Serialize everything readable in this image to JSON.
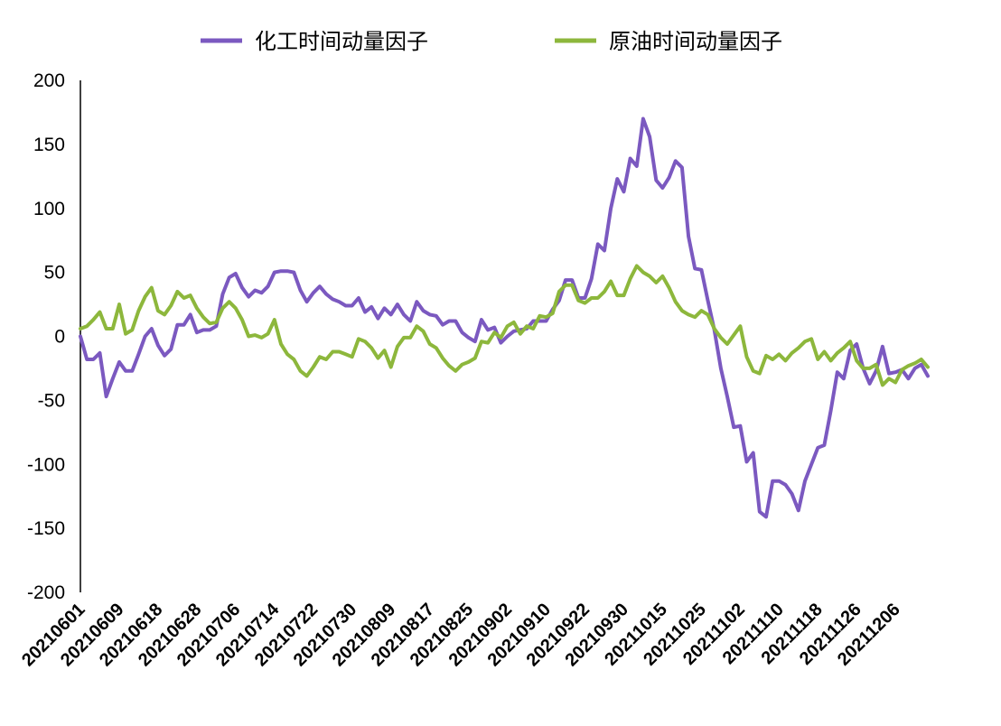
{
  "chart_data": {
    "type": "line",
    "title": "",
    "xlabel": "",
    "ylabel": "",
    "ylim": [
      -200,
      200
    ],
    "yticks": [
      200,
      150,
      100,
      50,
      0,
      -50,
      -100,
      -150,
      -200
    ],
    "ytick_labels": [
      "200",
      "150",
      "100",
      "50",
      "0",
      "-50",
      "-100",
      "-150",
      "-200"
    ],
    "xtick_labels": [
      "20210601",
      "20210609",
      "20210618",
      "20210628",
      "20210706",
      "20210714",
      "20210722",
      "20210730",
      "20210809",
      "20210817",
      "20210825",
      "20210902",
      "20210910",
      "20210922",
      "20210930",
      "20211015",
      "20211025",
      "20211102",
      "20211110",
      "20211118",
      "20211126",
      "20211206"
    ],
    "xtick_positions": [
      0,
      6,
      12,
      18,
      24,
      30,
      36,
      42,
      48,
      54,
      60,
      66,
      72,
      78,
      84,
      90,
      96,
      102,
      108,
      114,
      120,
      126
    ],
    "grid": false,
    "legend_position": "top",
    "series": [
      {
        "name": "化工时间动量因子",
        "color": "#7B59C0",
        "values": [
          0,
          -18,
          -18,
          -13,
          -47,
          -33,
          -20,
          -27,
          -27,
          -14,
          0,
          6,
          -7,
          -15,
          -10,
          9,
          9,
          17,
          3,
          5,
          5,
          8,
          33,
          46,
          49,
          38,
          31,
          36,
          34,
          39,
          50,
          51,
          51,
          50,
          36,
          27,
          34,
          39,
          33,
          29,
          27,
          24,
          24,
          30,
          19,
          23,
          14,
          22,
          17,
          25,
          17,
          12,
          27,
          20,
          17,
          16,
          9,
          12,
          12,
          3,
          -1,
          -4,
          13,
          5,
          7,
          -5,
          0,
          4,
          5,
          6,
          12,
          12,
          12,
          21,
          28,
          44,
          44,
          30,
          30,
          45,
          72,
          67,
          100,
          123,
          113,
          139,
          133,
          170,
          156,
          122,
          116,
          124,
          137,
          132,
          78,
          53,
          52,
          28,
          5,
          -25,
          -47,
          -71,
          -70,
          -98,
          -91,
          -137,
          -141,
          -113,
          -113,
          -116,
          -123,
          -136,
          -113,
          -100,
          -87,
          -85,
          -58,
          -28,
          -33,
          -11,
          -6,
          -25,
          -37,
          -27,
          -8,
          -29,
          -28,
          -26,
          -33,
          -25,
          -22,
          -31
        ]
      },
      {
        "name": "原油时间动量因子",
        "color": "#8DB73C",
        "values": [
          6,
          8,
          13,
          19,
          6,
          6,
          25,
          2,
          5,
          20,
          31,
          38,
          20,
          17,
          24,
          35,
          30,
          32,
          22,
          15,
          10,
          11,
          22,
          27,
          22,
          13,
          0,
          1,
          -1,
          2,
          13,
          -6,
          -14,
          -18,
          -27,
          -31,
          -24,
          -16,
          -18,
          -12,
          -12,
          -14,
          -16,
          -2,
          -4,
          -9,
          -17,
          -11,
          -24,
          -8,
          -1,
          -1,
          8,
          4,
          -6,
          -9,
          -17,
          -23,
          -27,
          -22,
          -20,
          -17,
          -4,
          -5,
          3,
          -1,
          8,
          11,
          2,
          8,
          6,
          16,
          15,
          18,
          35,
          40,
          40,
          28,
          26,
          30,
          30,
          35,
          43,
          32,
          32,
          45,
          55,
          50,
          47,
          42,
          47,
          38,
          27,
          20,
          17,
          15,
          20,
          17,
          6,
          -1,
          -6,
          1,
          8,
          -16,
          -27,
          -29,
          -15,
          -18,
          -14,
          -19,
          -13,
          -9,
          -4,
          -2,
          -18,
          -12,
          -19,
          -13,
          -9,
          -4,
          -19,
          -25,
          -25,
          -22,
          -38,
          -33,
          -36,
          -26,
          -23,
          -21,
          -18,
          -24
        ]
      }
    ]
  }
}
